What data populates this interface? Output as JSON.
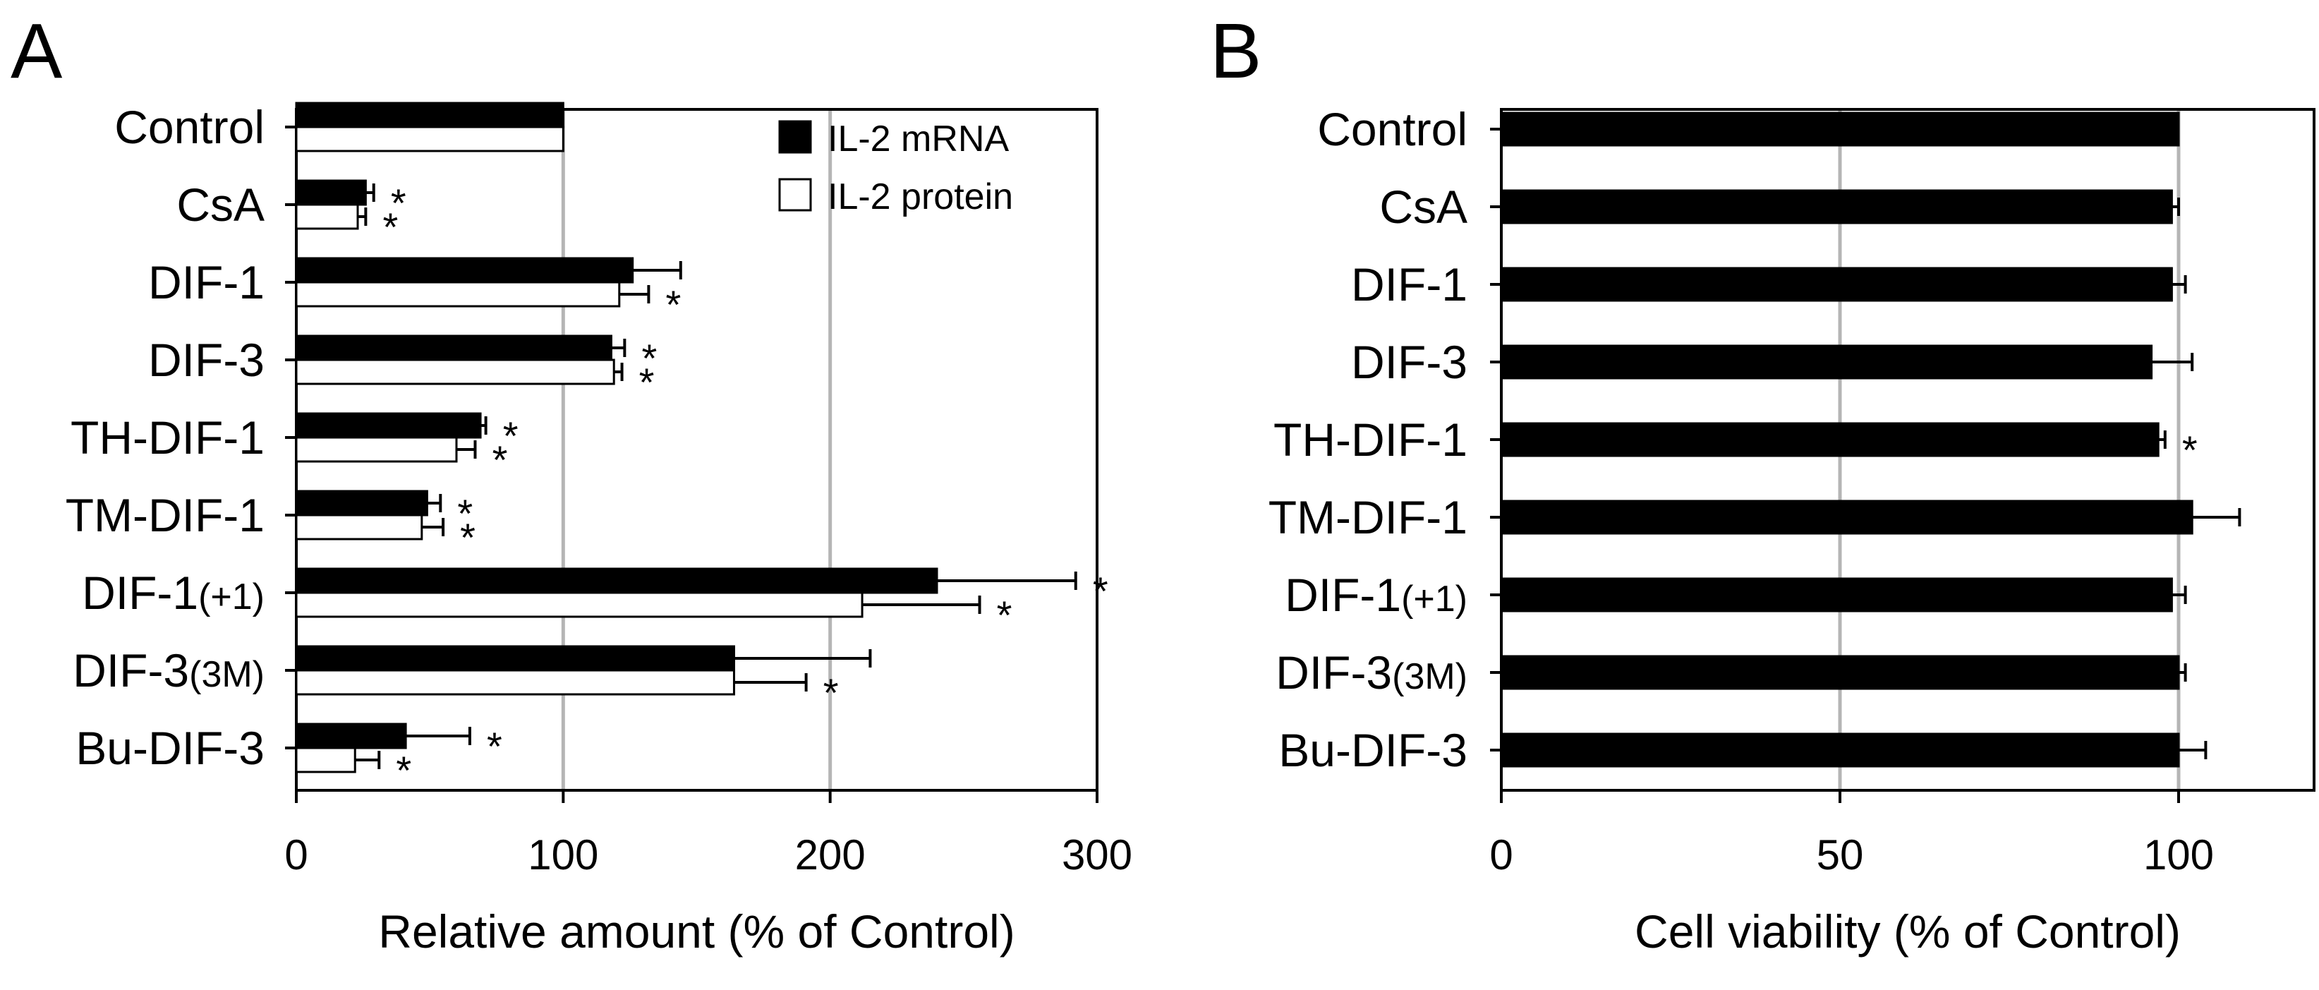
{
  "chart_data": [
    {
      "panel": "A",
      "type": "bar",
      "orientation": "horizontal",
      "categories": [
        {
          "name": "Control",
          "suffix": ""
        },
        {
          "name": "CsA",
          "suffix": ""
        },
        {
          "name": "DIF-1",
          "suffix": ""
        },
        {
          "name": "DIF-3",
          "suffix": ""
        },
        {
          "name": "TH-DIF-1",
          "suffix": ""
        },
        {
          "name": "TM-DIF-1",
          "suffix": ""
        },
        {
          "name": "DIF-1",
          "suffix": "(+1)"
        },
        {
          "name": "DIF-3",
          "suffix": "(3M)"
        },
        {
          "name": "Bu-DIF-3",
          "suffix": ""
        }
      ],
      "series": [
        {
          "name": "IL-2 mRNA",
          "fill": "#000000",
          "values": [
            100,
            26,
            126,
            118,
            69,
            49,
            240,
            164,
            41
          ],
          "errors": [
            0,
            3,
            18,
            5,
            2,
            5,
            52,
            51,
            24
          ],
          "significant": [
            false,
            true,
            false,
            true,
            true,
            true,
            true,
            false,
            true
          ]
        },
        {
          "name": "IL-2 protein",
          "fill": "#ffffff",
          "values": [
            100,
            23,
            121,
            119,
            60,
            47,
            212,
            164,
            22
          ],
          "errors": [
            0,
            3,
            11,
            3,
            7,
            8,
            44,
            27,
            9
          ],
          "significant": [
            false,
            true,
            true,
            true,
            true,
            true,
            true,
            true,
            true
          ]
        }
      ],
      "xlabel": "Relative amount (% of Control)",
      "xlim": [
        0,
        300
      ],
      "xticks": [
        "0",
        "100",
        "200",
        "300"
      ],
      "gridlines": [
        100,
        200
      ],
      "legend": "top-right",
      "significance_mark": "*"
    },
    {
      "panel": "B",
      "type": "bar",
      "orientation": "horizontal",
      "categories": [
        {
          "name": "Control",
          "suffix": ""
        },
        {
          "name": "CsA",
          "suffix": ""
        },
        {
          "name": "DIF-1",
          "suffix": ""
        },
        {
          "name": "DIF-3",
          "suffix": ""
        },
        {
          "name": "TH-DIF-1",
          "suffix": ""
        },
        {
          "name": "TM-DIF-1",
          "suffix": ""
        },
        {
          "name": "DIF-1",
          "suffix": "(+1)"
        },
        {
          "name": "DIF-3",
          "suffix": "(3M)"
        },
        {
          "name": "Bu-DIF-3",
          "suffix": ""
        }
      ],
      "series": [
        {
          "name": "Cell viability",
          "fill": "#000000",
          "values": [
            100,
            99,
            99,
            96,
            97,
            102,
            99,
            100,
            100
          ],
          "errors": [
            0,
            1,
            2,
            6,
            1,
            7,
            2,
            1,
            4
          ],
          "significant": [
            false,
            false,
            false,
            false,
            true,
            false,
            false,
            false,
            false
          ]
        }
      ],
      "xlabel": "Cell viability (% of Control)",
      "xlim": [
        0,
        120
      ],
      "xticks": [
        "0",
        "50",
        "100"
      ],
      "gridlines": [
        50,
        100
      ],
      "legend": "none",
      "significance_mark": "*"
    }
  ]
}
